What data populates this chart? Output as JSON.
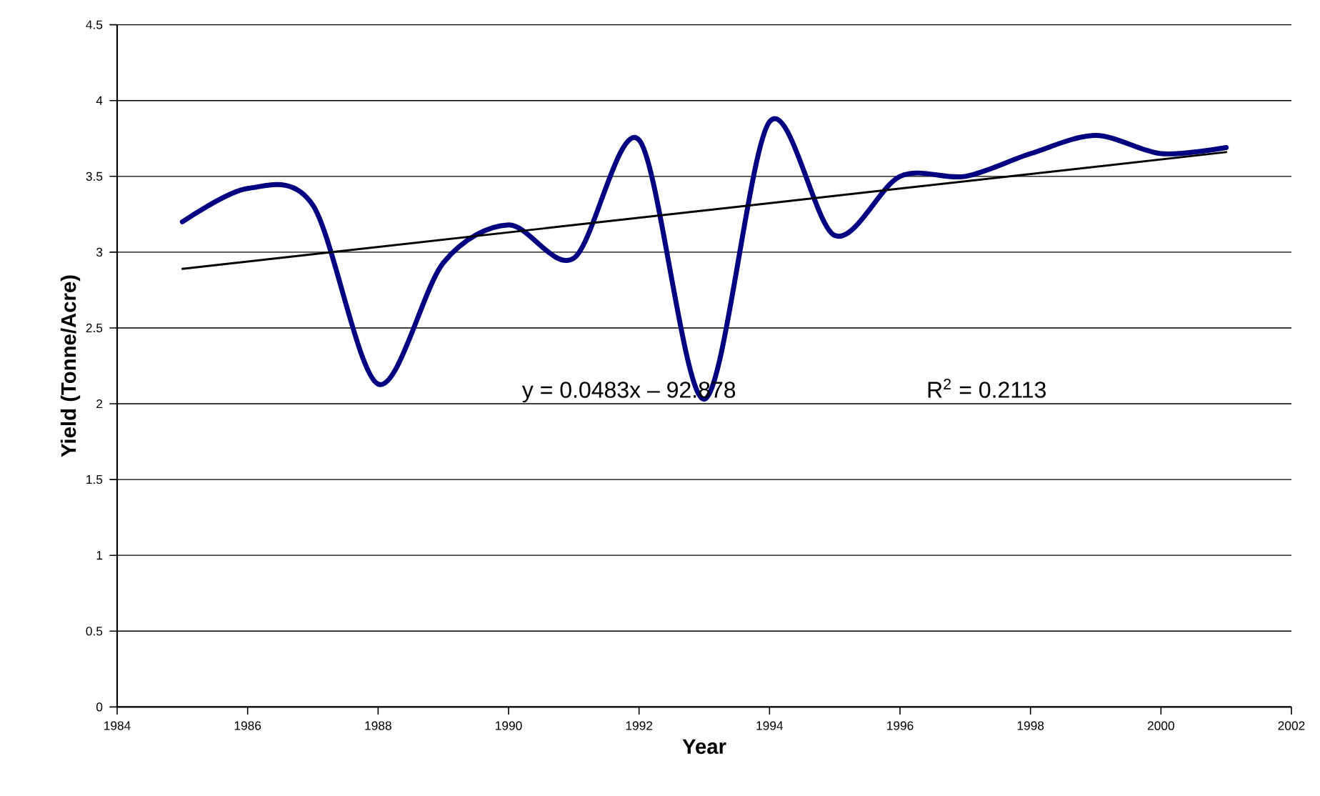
{
  "chart_data": {
    "type": "line",
    "xlabel": "Year",
    "ylabel": "Yield (Tonne/Acre)",
    "x": [
      1985,
      1986,
      1987,
      1988,
      1989,
      1990,
      1991,
      1992,
      1993,
      1994,
      1995,
      1996,
      1997,
      1998,
      1999,
      2000,
      2001
    ],
    "series": [
      {
        "color": "#000080",
        "values": [
          3.2,
          3.42,
          3.31,
          2.13,
          2.93,
          3.18,
          2.96,
          3.74,
          2.03,
          3.86,
          3.11,
          3.5,
          3.5,
          3.65,
          3.77,
          3.65,
          3.69
        ]
      },
      {
        "type": "line",
        "color": "#000000",
        "x": [
          1985,
          2001
        ],
        "values": [
          2.89,
          3.66
        ]
      }
    ],
    "xlim": [
      1984,
      2002
    ],
    "xticks": [
      1984,
      1986,
      1988,
      1990,
      1992,
      1994,
      1996,
      1998,
      2000,
      2002
    ],
    "ylim": [
      0,
      4.5
    ],
    "yticks": [
      0,
      0.5,
      1,
      1.5,
      2,
      2.5,
      3,
      3.5,
      4,
      4.5
    ],
    "grid": "y",
    "legend": false,
    "marker": "none",
    "line_style": "solid",
    "annotations": [
      "y = 0.0483x – 92.878",
      "R$^{2}$ = 0.2113"
    ]
  }
}
